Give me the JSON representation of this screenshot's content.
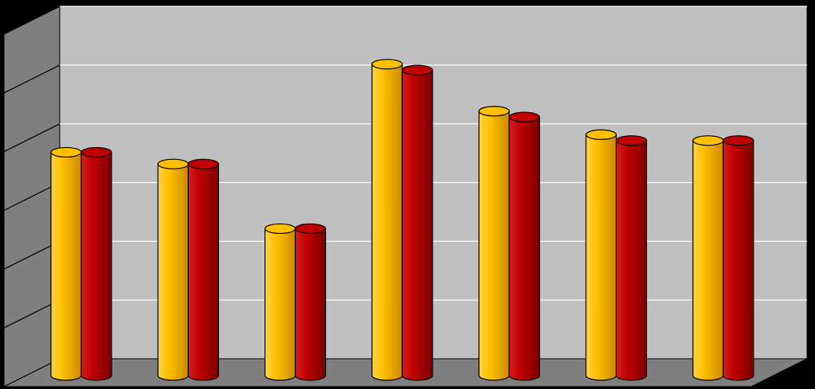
{
  "chart_data": {
    "type": "bar",
    "title": "",
    "xlabel": "",
    "ylabel": "",
    "categories": [
      "",
      "",
      "",
      "",
      "",
      "",
      ""
    ],
    "series": [
      {
        "values": [
          3.8,
          3.6,
          2.5,
          5.3,
          4.5,
          4.1,
          4.0
        ]
      },
      {
        "values": [
          3.8,
          3.6,
          2.5,
          5.2,
          4.4,
          4.0,
          4.0
        ]
      }
    ],
    "ylim": [
      0,
      6
    ],
    "grid": true,
    "legend": "none",
    "three_d": true,
    "bar_shape": "cylinder",
    "colors": {
      "background": "#000000",
      "wall": "#c0c0c0",
      "side_wall": "#7f7f7f",
      "floor": "#7f7f7f",
      "gridline": "#ffffff",
      "series": [
        "#ffc000",
        "#c00000"
      ],
      "series_dark": [
        "#d98c00",
        "#7a0000"
      ]
    }
  }
}
